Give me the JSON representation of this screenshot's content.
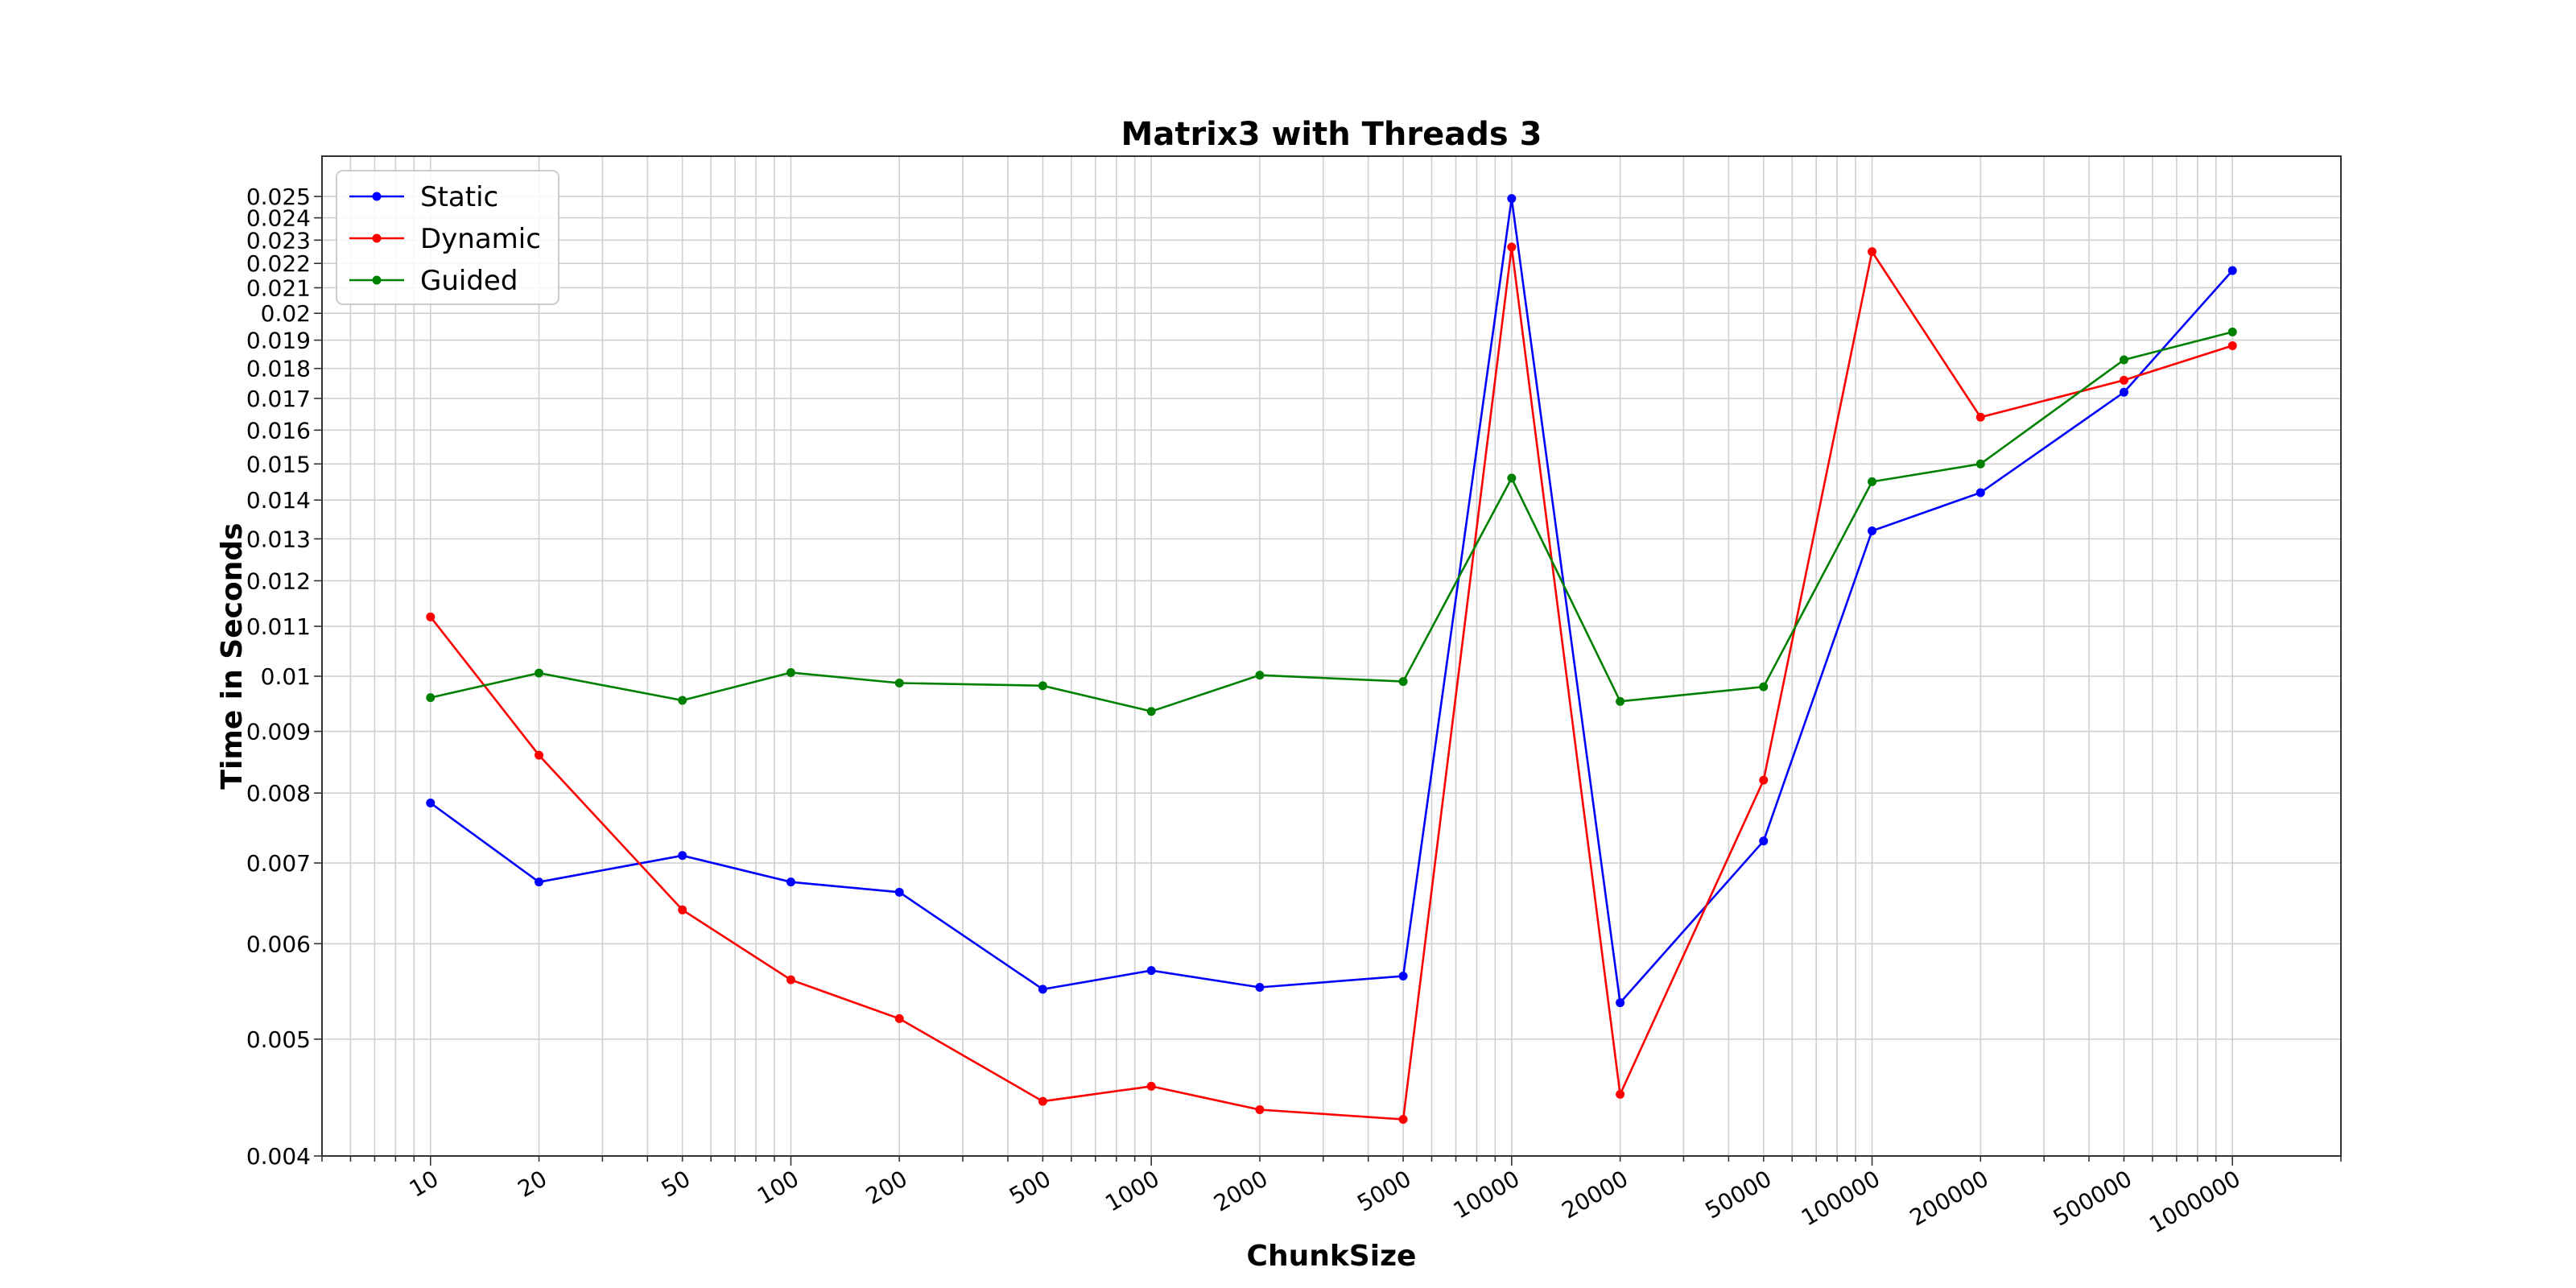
{
  "chart_data": {
    "type": "line",
    "title": "Matrix3 with Threads 3",
    "xlabel": "ChunkSize",
    "ylabel": "Time in Seconds",
    "x_scale": "log",
    "y_scale": "log",
    "xlim": [
      5,
      2000000
    ],
    "ylim": [
      0.004,
      0.027
    ],
    "grid": true,
    "legend_position": "top-left",
    "x": [
      10,
      20,
      50,
      100,
      200,
      500,
      1000,
      2000,
      5000,
      10000,
      20000,
      50000,
      100000,
      200000,
      500000,
      1000000
    ],
    "x_tick_labels": [
      "10",
      "20",
      "50",
      "100",
      "200",
      "500",
      "1000",
      "2000",
      "5000",
      "10000",
      "20000",
      "50000",
      "100000",
      "200000",
      "500000",
      "1000000"
    ],
    "y_ticks": [
      0.004,
      0.005,
      0.006,
      0.007,
      0.008,
      0.009,
      0.01,
      0.011,
      0.012,
      0.013,
      0.014,
      0.015,
      0.016,
      0.017,
      0.018,
      0.019,
      0.02,
      0.021,
      0.022,
      0.023,
      0.024,
      0.025
    ],
    "y_tick_labels": [
      "0.004",
      "0.005",
      "0.006",
      "0.007",
      "0.008",
      "0.009",
      "0.01",
      "0.011",
      "0.012",
      "0.013",
      "0.014",
      "0.015",
      "0.016",
      "0.017",
      "0.018",
      "0.019",
      "0.02",
      "0.021",
      "0.022",
      "0.023",
      "0.024",
      "0.025"
    ],
    "series": [
      {
        "name": "Static",
        "color": "#0000ff",
        "values": [
          0.00785,
          0.00675,
          0.0071,
          0.00675,
          0.00662,
          0.0055,
          0.0057,
          0.00552,
          0.00564,
          0.0249,
          0.00536,
          0.0073,
          0.0132,
          0.0142,
          0.0172,
          0.0217
        ]
      },
      {
        "name": "Dynamic",
        "color": "#ff0000",
        "values": [
          0.0112,
          0.0086,
          0.0064,
          0.0056,
          0.0052,
          0.00444,
          0.00457,
          0.00437,
          0.00429,
          0.0227,
          0.0045,
          0.0082,
          0.0225,
          0.0164,
          0.0176,
          0.0188
        ]
      },
      {
        "name": "Guided",
        "color": "#008000",
        "values": [
          0.0096,
          0.01006,
          0.00955,
          0.01007,
          0.00987,
          0.00982,
          0.00935,
          0.01002,
          0.0099,
          0.0146,
          0.00953,
          0.0098,
          0.0145,
          0.015,
          0.0183,
          0.0193
        ]
      }
    ]
  }
}
